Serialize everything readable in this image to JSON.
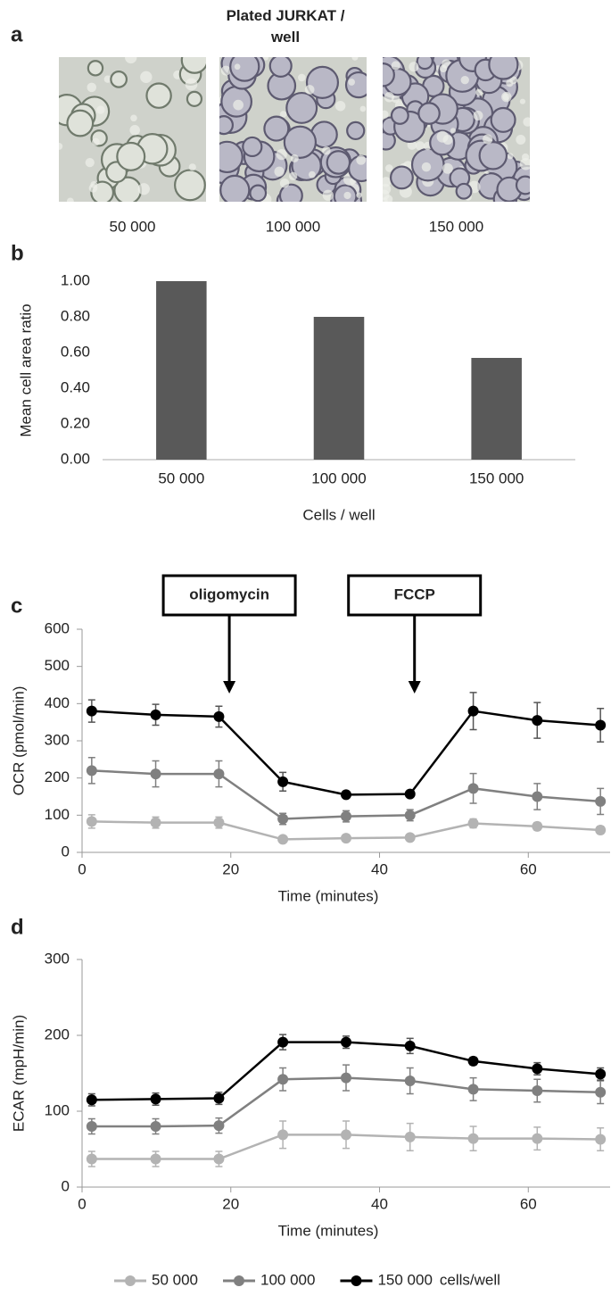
{
  "chart_data": [
    {
      "type": "image",
      "panel": "a",
      "title": "Plated JURKAT / well",
      "categories": [
        "50 000",
        "100 000",
        "150 000"
      ]
    },
    {
      "type": "bar",
      "panel": "b",
      "categories": [
        "50 000",
        "100 000",
        "150 000"
      ],
      "values": [
        1.0,
        0.8,
        0.57
      ],
      "color": "#595959",
      "ylim": [
        0,
        1
      ],
      "yticks": [
        {
          "value": 0,
          "label": "0.00"
        },
        {
          "value": 0.2,
          "label": "0.20"
        },
        {
          "value": 0.4,
          "label": "0.40"
        },
        {
          "value": 0.6,
          "label": "0.60"
        },
        {
          "value": 0.8,
          "label": "0.80"
        },
        {
          "value": 1,
          "label": "1.00"
        }
      ],
      "ylabel": "Mean cell area ratio",
      "xlabel": "Cells / well"
    },
    {
      "type": "line",
      "panel": "c",
      "x": [
        1.3,
        9.9,
        18.4,
        27.0,
        35.5,
        44.1,
        52.6,
        61.2,
        69.7
      ],
      "series": [
        {
          "name": "50 000",
          "color": "#b3b3b3",
          "values": [
            83,
            80,
            80,
            35,
            38,
            40,
            78,
            70,
            60
          ],
          "errors": [
            18,
            15,
            15,
            5,
            8,
            8,
            12,
            10,
            10
          ]
        },
        {
          "name": "100 000",
          "color": "#808080",
          "values": [
            220,
            211,
            211,
            90,
            97,
            100,
            172,
            150,
            137
          ],
          "errors": [
            35,
            35,
            35,
            15,
            15,
            15,
            40,
            35,
            35
          ]
        },
        {
          "name": "150 000",
          "color": "#000000",
          "values": [
            380,
            370,
            365,
            190,
            155,
            157,
            380,
            355,
            342
          ],
          "errors": [
            30,
            28,
            28,
            25,
            5,
            5,
            50,
            48,
            45
          ]
        }
      ],
      "xlim": [
        0,
        71
      ],
      "xticks": [
        0,
        20,
        40,
        60
      ],
      "ylim": [
        0,
        600
      ],
      "yticks": [
        0,
        100,
        200,
        300,
        400,
        500,
        600
      ],
      "ylabel": "OCR (pmol/min)",
      "xlabel": "Time (minutes)",
      "annotations": [
        {
          "text": "oligomycin",
          "x": 19.8
        },
        {
          "text": "FCCP",
          "x": 44.7
        }
      ]
    },
    {
      "type": "line",
      "panel": "d",
      "x": [
        1.3,
        9.9,
        18.4,
        27.0,
        35.5,
        44.1,
        52.6,
        61.2,
        69.7
      ],
      "series": [
        {
          "name": "50 000",
          "color": "#b3b3b3",
          "values": [
            37,
            37,
            37,
            69,
            69,
            66,
            64,
            64,
            63
          ],
          "errors": [
            10,
            10,
            10,
            18,
            18,
            18,
            16,
            15,
            15
          ]
        },
        {
          "name": "100 000",
          "color": "#808080",
          "values": [
            80,
            80,
            81,
            142,
            144,
            140,
            129,
            127,
            125
          ],
          "errors": [
            10,
            10,
            10,
            15,
            17,
            17,
            15,
            15,
            15
          ]
        },
        {
          "name": "150 000",
          "color": "#000000",
          "values": [
            115,
            116,
            117,
            191,
            191,
            186,
            166,
            156,
            149
          ],
          "errors": [
            8,
            8,
            8,
            10,
            8,
            10,
            5,
            8,
            8
          ]
        }
      ],
      "xlim": [
        0,
        71
      ],
      "xticks": [
        0,
        20,
        40,
        60
      ],
      "ylim": [
        0,
        300
      ],
      "yticks": [
        0,
        100,
        200,
        300
      ],
      "ylabel": "ECAR (mpH/min)",
      "xlabel": "Time (minutes)",
      "legend_title": "cells/well"
    }
  ]
}
